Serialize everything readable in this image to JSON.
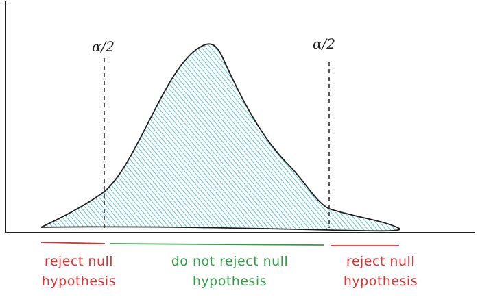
{
  "colors": {
    "fill": "#5ec4d6",
    "reject": "#e03131",
    "accept": "#2f9e44",
    "stroke": "#1e1e1e"
  },
  "labels": {
    "alpha_left": "α/2",
    "alpha_right": "α/2",
    "reject_left": [
      "reject null",
      "hypothesis"
    ],
    "accept": [
      "do not reject null",
      "hypothesis"
    ],
    "reject_right": [
      "reject null",
      "hypothesis"
    ]
  }
}
